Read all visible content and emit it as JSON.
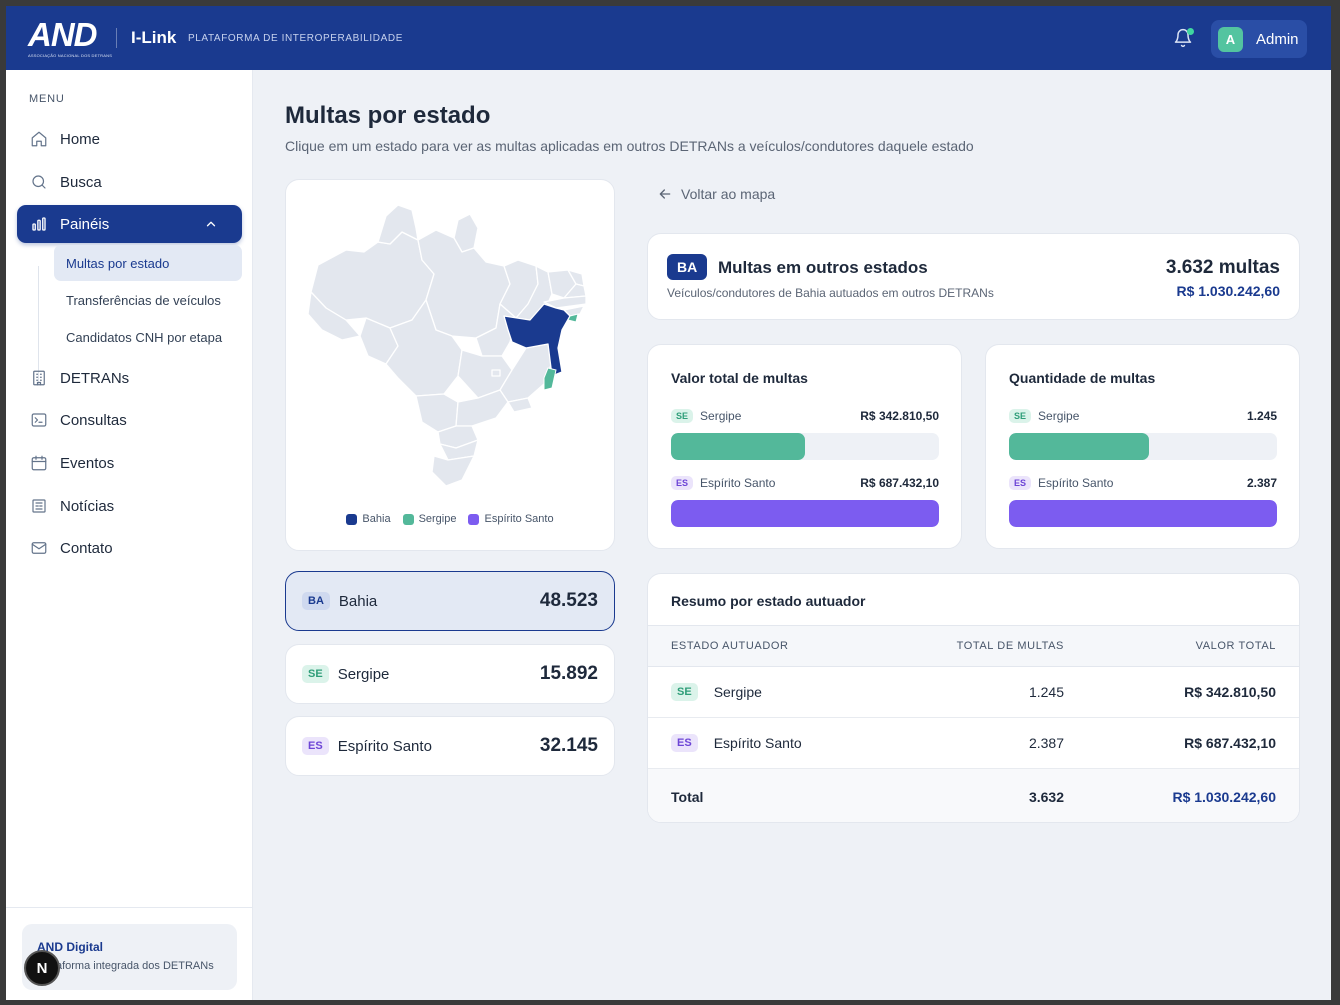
{
  "header": {
    "logo_text": "AND",
    "logo_sub": "ASSOCIAÇÃO NACIONAL DOS DETRANS",
    "brand": "I-Link",
    "tagline": "PLATAFORMA DE INTEROPERABILIDADE",
    "user": {
      "initial": "A",
      "name": "Admin"
    }
  },
  "sidebar": {
    "menu_label": "MENU",
    "items": [
      {
        "label": "Home",
        "icon": "home-icon"
      },
      {
        "label": "Busca",
        "icon": "search-icon"
      },
      {
        "label": "Painéis",
        "icon": "bar-chart-icon",
        "active": true
      },
      {
        "label": "DETRANs",
        "icon": "building-icon"
      },
      {
        "label": "Consultas",
        "icon": "terminal-icon"
      },
      {
        "label": "Eventos",
        "icon": "calendar-icon"
      },
      {
        "label": "Notícias",
        "icon": "newspaper-icon"
      },
      {
        "label": "Contato",
        "icon": "mail-icon"
      }
    ],
    "sub_items": [
      {
        "label": "Multas por estado",
        "active": true
      },
      {
        "label": "Transferências de veículos"
      },
      {
        "label": "Candidatos CNH por etapa"
      }
    ],
    "footer": {
      "title": "AND Digital",
      "subtitle": "Plataforma integrada dos DETRANs",
      "badge": "N"
    }
  },
  "page": {
    "title": "Multas por estado",
    "subtitle": "Clique em um estado para ver as multas aplicadas em outros DETRANs a veículos/condutores daquele estado"
  },
  "map": {
    "legend": [
      {
        "label": "Bahia",
        "color": "#1a3a8f"
      },
      {
        "label": "Sergipe",
        "color": "#53b89a"
      },
      {
        "label": "Espírito Santo",
        "color": "#7c5cf0"
      }
    ],
    "base_color": "#e3e7ee"
  },
  "states": [
    {
      "uf": "BA",
      "name": "Bahia",
      "value": "48.523",
      "selected": true
    },
    {
      "uf": "SE",
      "name": "Sergipe",
      "value": "15.892"
    },
    {
      "uf": "ES",
      "name": "Espírito Santo",
      "value": "32.145"
    }
  ],
  "back_label": "Voltar ao mapa",
  "summary": {
    "uf": "BA",
    "title": "Multas em outros estados",
    "subtitle": "Veículos/condutores de Bahia autuados em outros DETRANs",
    "count": "3.632 multas",
    "value": "R$ 1.030.242,60"
  },
  "value_chart": {
    "title": "Valor total de multas",
    "rows": [
      {
        "uf": "SE",
        "name": "Sergipe",
        "label": "R$ 342.810,50",
        "value": 342810.5,
        "color": "#53b89a"
      },
      {
        "uf": "ES",
        "name": "Espírito Santo",
        "label": "R$ 687.432,10",
        "value": 687432.1,
        "color": "#7c5cf0"
      }
    ]
  },
  "count_chart": {
    "title": "Quantidade de multas",
    "rows": [
      {
        "uf": "SE",
        "name": "Sergipe",
        "label": "1.245",
        "value": 1245,
        "color": "#53b89a"
      },
      {
        "uf": "ES",
        "name": "Espírito Santo",
        "label": "2.387",
        "value": 2387,
        "color": "#7c5cf0"
      }
    ]
  },
  "table": {
    "title": "Resumo por estado autuador",
    "headers": [
      "ESTADO AUTUADOR",
      "TOTAL DE MULTAS",
      "VALOR TOTAL"
    ],
    "rows": [
      {
        "uf": "SE",
        "name": "Sergipe",
        "total": "1.245",
        "value": "R$ 342.810,50"
      },
      {
        "uf": "ES",
        "name": "Espírito Santo",
        "total": "2.387",
        "value": "R$ 687.432,10"
      }
    ],
    "total": {
      "label": "Total",
      "total": "3.632",
      "value": "R$ 1.030.242,60"
    }
  }
}
